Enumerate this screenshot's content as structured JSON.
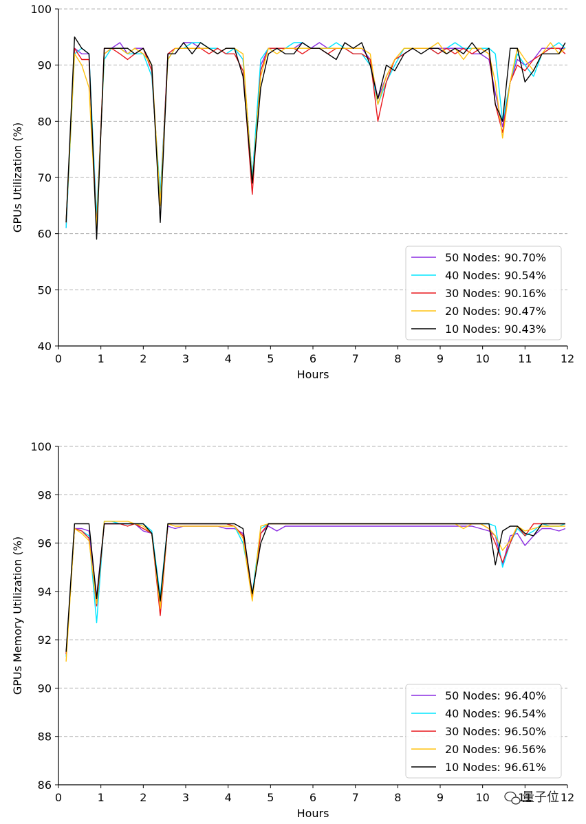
{
  "chart_data": [
    {
      "type": "line",
      "xlabel": "Hours",
      "ylabel": "GPUs Utilization (%)",
      "xlim": [
        0,
        12
      ],
      "ylim": [
        40,
        100
      ],
      "xticks": [
        0,
        1,
        2,
        3,
        4,
        5,
        6,
        7,
        8,
        9,
        10,
        11,
        12
      ],
      "yticks": [
        40,
        50,
        60,
        70,
        80,
        90,
        100
      ],
      "grid": "horizontal-dashed",
      "legend_position": "lower-right",
      "x": [
        0.18,
        0.38,
        0.55,
        0.72,
        0.9,
        1.08,
        1.25,
        1.45,
        1.63,
        1.8,
        2.0,
        2.2,
        2.4,
        2.58,
        2.75,
        2.95,
        3.15,
        3.35,
        3.55,
        3.75,
        3.95,
        4.15,
        4.35,
        4.57,
        4.77,
        4.95,
        5.15,
        5.35,
        5.55,
        5.75,
        5.95,
        6.15,
        6.35,
        6.55,
        6.75,
        6.95,
        7.15,
        7.35,
        7.53,
        7.73,
        7.93,
        8.15,
        8.35,
        8.55,
        8.75,
        8.95,
        9.15,
        9.35,
        9.55,
        9.75,
        9.95,
        10.15,
        10.3,
        10.47,
        10.65,
        10.82,
        11.0,
        11.2,
        11.4,
        11.6,
        11.8,
        11.95
      ],
      "series": [
        {
          "name": "50 Nodes: 90.70%",
          "color": "#8a2be2",
          "values": [
            61,
            93,
            92,
            92,
            61,
            92,
            93,
            94,
            92,
            93,
            93,
            89,
            66,
            92,
            92,
            94,
            94,
            93,
            93,
            92,
            93,
            93,
            91,
            70,
            90,
            93,
            93,
            93,
            93,
            94,
            93,
            94,
            93,
            93,
            93,
            93,
            93,
            91,
            84,
            88,
            91,
            92,
            93,
            93,
            93,
            93,
            93,
            93,
            93,
            92,
            92,
            91,
            85,
            79,
            87,
            91,
            90,
            91,
            93,
            93,
            93,
            93
          ]
        },
        {
          "name": "40 Nodes: 90.54%",
          "color": "#00e5ff",
          "values": [
            61,
            92,
            93,
            92,
            63,
            91,
            93,
            93,
            92,
            92,
            92,
            88,
            67,
            91,
            93,
            93,
            94,
            94,
            93,
            93,
            92,
            93,
            91,
            70,
            91,
            93,
            93,
            93,
            94,
            94,
            93,
            93,
            93,
            94,
            93,
            92,
            92,
            90,
            83,
            87,
            90,
            93,
            93,
            93,
            93,
            92,
            93,
            94,
            93,
            93,
            93,
            93,
            92,
            80,
            87,
            92,
            90,
            88,
            92,
            93,
            94,
            93
          ]
        },
        {
          "name": "30 Nodes: 90.16%",
          "color": "#e8161b",
          "values": [
            62,
            93,
            91,
            91,
            61,
            93,
            93,
            92,
            91,
            92,
            93,
            89,
            65,
            92,
            93,
            93,
            93,
            93,
            92,
            93,
            92,
            92,
            89,
            67,
            89,
            93,
            93,
            93,
            93,
            92,
            93,
            93,
            92,
            93,
            93,
            92,
            92,
            91,
            80,
            87,
            91,
            92,
            93,
            93,
            93,
            92,
            93,
            92,
            93,
            92,
            93,
            92,
            83,
            78,
            87,
            90,
            89,
            91,
            92,
            93,
            93,
            92
          ]
        },
        {
          "name": "20 Nodes: 90.47%",
          "color": "#ffc20e",
          "values": [
            62,
            92,
            90,
            86,
            61,
            92,
            93,
            93,
            92,
            93,
            92,
            90,
            65,
            91,
            93,
            93,
            93,
            93,
            93,
            92,
            93,
            93,
            92,
            69,
            88,
            93,
            92,
            93,
            93,
            93,
            93,
            93,
            93,
            93,
            93,
            93,
            93,
            92,
            83,
            88,
            91,
            93,
            93,
            93,
            93,
            94,
            92,
            93,
            91,
            93,
            93,
            92,
            87,
            77,
            87,
            93,
            91,
            89,
            92,
            94,
            92,
            93
          ]
        },
        {
          "name": "10 Nodes: 90.43%",
          "color": "#000000",
          "values": [
            62,
            95,
            93,
            92,
            59,
            93,
            93,
            93,
            93,
            92,
            93,
            90,
            62,
            92,
            92,
            94,
            92,
            94,
            93,
            92,
            93,
            93,
            88,
            69,
            86,
            92,
            93,
            92,
            92,
            94,
            93,
            93,
            92,
            91,
            94,
            93,
            94,
            90,
            84,
            90,
            89,
            92,
            93,
            92,
            93,
            93,
            92,
            93,
            92,
            94,
            92,
            93,
            83,
            80,
            93,
            93,
            87,
            89,
            92,
            92,
            92,
            94
          ]
        }
      ]
    },
    {
      "type": "line",
      "xlabel": "Hours",
      "ylabel": "GPUs Memory Utilization (%)",
      "xlim": [
        0,
        12
      ],
      "ylim": [
        86,
        100
      ],
      "xticks": [
        0,
        1,
        2,
        3,
        4,
        5,
        6,
        7,
        8,
        9,
        10,
        11,
        12
      ],
      "xtick_labels": [
        "0",
        "1",
        "2",
        "3",
        "4",
        "5",
        "6",
        "7",
        "8",
        "9",
        "10",
        "11",
        "12"
      ],
      "yticks": [
        86,
        88,
        90,
        92,
        94,
        96,
        98,
        100
      ],
      "grid": "horizontal-dashed",
      "legend_position": "lower-right",
      "x": [
        0.18,
        0.38,
        0.55,
        0.72,
        0.9,
        1.08,
        1.25,
        1.45,
        1.63,
        1.8,
        2.0,
        2.2,
        2.4,
        2.58,
        2.75,
        2.95,
        3.15,
        3.35,
        3.55,
        3.75,
        3.95,
        4.15,
        4.35,
        4.57,
        4.77,
        4.95,
        5.15,
        5.35,
        5.55,
        5.75,
        5.95,
        6.15,
        6.35,
        6.55,
        6.75,
        6.95,
        7.15,
        7.35,
        7.53,
        7.73,
        7.93,
        8.15,
        8.35,
        8.55,
        8.75,
        8.95,
        9.15,
        9.35,
        9.55,
        9.75,
        9.95,
        10.15,
        10.3,
        10.47,
        10.65,
        10.82,
        11.0,
        11.2,
        11.4,
        11.6,
        11.8,
        11.95
      ],
      "series": [
        {
          "name": "50 Nodes: 96.40%",
          "color": "#8a2be2",
          "values": [
            91.4,
            96.6,
            96.6,
            96.5,
            93.8,
            96.8,
            96.8,
            96.8,
            96.8,
            96.8,
            96.5,
            96.4,
            93.5,
            96.7,
            96.6,
            96.7,
            96.7,
            96.7,
            96.7,
            96.7,
            96.6,
            96.6,
            96.4,
            93.8,
            96.4,
            96.7,
            96.5,
            96.7,
            96.7,
            96.7,
            96.7,
            96.7,
            96.7,
            96.7,
            96.7,
            96.7,
            96.7,
            96.7,
            96.7,
            96.7,
            96.7,
            96.7,
            96.7,
            96.7,
            96.7,
            96.7,
            96.7,
            96.7,
            96.7,
            96.7,
            96.6,
            96.5,
            96.3,
            95.1,
            96.3,
            96.4,
            95.9,
            96.3,
            96.6,
            96.6,
            96.5,
            96.6
          ]
        },
        {
          "name": "40 Nodes: 96.54%",
          "color": "#00e5ff",
          "values": [
            91.3,
            96.6,
            96.5,
            96.3,
            92.7,
            96.9,
            96.9,
            96.8,
            96.8,
            96.8,
            96.8,
            96.5,
            93.8,
            96.8,
            96.8,
            96.8,
            96.8,
            96.8,
            96.8,
            96.8,
            96.8,
            96.7,
            96.0,
            93.9,
            96.6,
            96.8,
            96.8,
            96.8,
            96.8,
            96.8,
            96.8,
            96.8,
            96.8,
            96.8,
            96.8,
            96.8,
            96.8,
            96.8,
            96.8,
            96.8,
            96.8,
            96.8,
            96.8,
            96.8,
            96.8,
            96.8,
            96.8,
            96.8,
            96.8,
            96.8,
            96.8,
            96.8,
            96.7,
            95.0,
            96.0,
            96.6,
            96.3,
            96.5,
            96.8,
            96.7,
            96.7,
            96.8
          ]
        },
        {
          "name": "30 Nodes: 96.50%",
          "color": "#e8161b",
          "values": [
            91.4,
            96.6,
            96.5,
            96.2,
            93.4,
            96.8,
            96.8,
            96.8,
            96.7,
            96.8,
            96.6,
            96.4,
            93.0,
            96.8,
            96.8,
            96.8,
            96.8,
            96.8,
            96.8,
            96.8,
            96.8,
            96.7,
            96.3,
            93.7,
            96.4,
            96.8,
            96.8,
            96.8,
            96.8,
            96.8,
            96.8,
            96.8,
            96.8,
            96.8,
            96.8,
            96.8,
            96.8,
            96.8,
            96.8,
            96.8,
            96.8,
            96.8,
            96.8,
            96.8,
            96.8,
            96.8,
            96.8,
            96.8,
            96.8,
            96.8,
            96.8,
            96.6,
            96.0,
            95.2,
            96.0,
            96.7,
            96.3,
            96.8,
            96.8,
            96.8,
            96.8,
            96.8
          ]
        },
        {
          "name": "20 Nodes: 96.56%",
          "color": "#ffc20e",
          "values": [
            91.1,
            96.6,
            96.4,
            96.1,
            93.5,
            96.9,
            96.9,
            96.9,
            96.9,
            96.8,
            96.7,
            96.4,
            93.3,
            96.8,
            96.7,
            96.7,
            96.7,
            96.7,
            96.7,
            96.7,
            96.7,
            96.7,
            96.2,
            93.6,
            96.7,
            96.8,
            96.8,
            96.8,
            96.8,
            96.8,
            96.8,
            96.8,
            96.8,
            96.8,
            96.8,
            96.8,
            96.8,
            96.8,
            96.8,
            96.8,
            96.8,
            96.8,
            96.8,
            96.8,
            96.8,
            96.8,
            96.8,
            96.8,
            96.6,
            96.8,
            96.8,
            96.6,
            96.3,
            95.7,
            96.1,
            96.7,
            96.5,
            96.6,
            96.7,
            96.7,
            96.7,
            96.7
          ]
        },
        {
          "name": "10 Nodes: 96.61%",
          "color": "#000000",
          "values": [
            91.5,
            96.8,
            96.8,
            96.8,
            93.7,
            96.8,
            96.8,
            96.8,
            96.8,
            96.8,
            96.8,
            96.4,
            93.6,
            96.8,
            96.8,
            96.8,
            96.8,
            96.8,
            96.8,
            96.8,
            96.8,
            96.8,
            96.6,
            93.9,
            96.0,
            96.8,
            96.8,
            96.8,
            96.8,
            96.8,
            96.8,
            96.8,
            96.8,
            96.8,
            96.8,
            96.8,
            96.8,
            96.8,
            96.8,
            96.8,
            96.8,
            96.8,
            96.8,
            96.8,
            96.8,
            96.8,
            96.8,
            96.8,
            96.8,
            96.8,
            96.8,
            96.8,
            95.1,
            96.5,
            96.7,
            96.7,
            96.4,
            96.3,
            96.8,
            96.8,
            96.8,
            96.8
          ]
        }
      ]
    }
  ],
  "watermark": {
    "icon": "wechat-icon",
    "text": "量子位"
  }
}
